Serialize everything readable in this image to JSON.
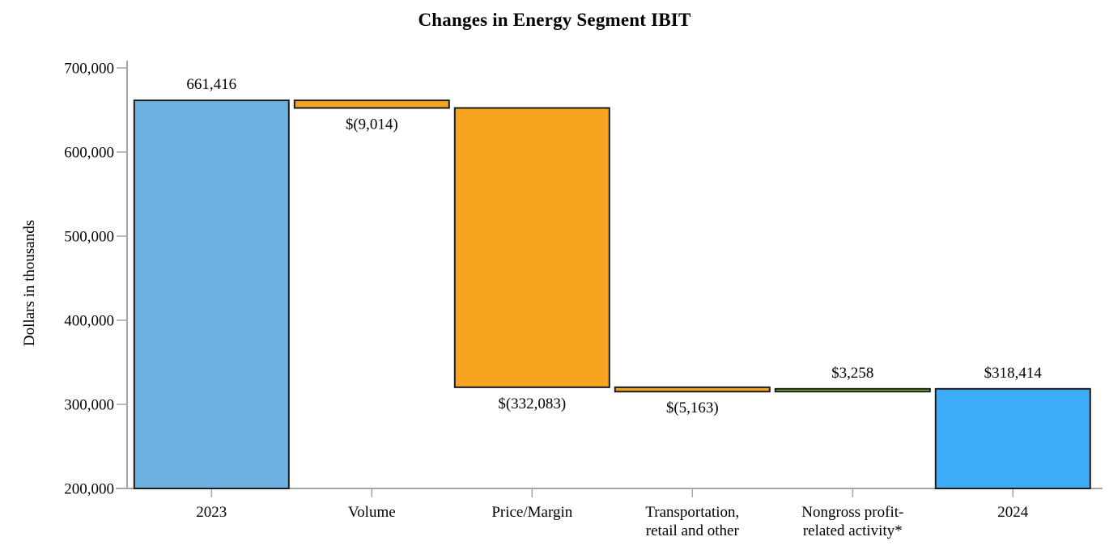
{
  "chart_data": {
    "type": "bar",
    "subtype": "waterfall",
    "title": "Changes in Energy Segment IBIT",
    "ylabel": "Dollars in thousands",
    "ylim": [
      200000,
      700000
    ],
    "ytick_step": 100000,
    "yticks": [
      700000,
      600000,
      500000,
      400000,
      300000,
      200000
    ],
    "ytick_labels": [
      "700,000",
      "600,000",
      "500,000",
      "400,000",
      "300,000",
      "200,000"
    ],
    "grid": false,
    "legend": false,
    "bars": [
      {
        "category_lines": [
          "2023"
        ],
        "kind": "total",
        "value": 661416,
        "start": 200000,
        "end": 661416,
        "data_label": "661,416",
        "label_position": "above",
        "color": "#6CB1E1"
      },
      {
        "category_lines": [
          "Volume"
        ],
        "kind": "decrease",
        "value": -9014,
        "start": 661416,
        "end": 652402,
        "data_label": "$(9,014)",
        "label_position": "below",
        "color": "#F7A521"
      },
      {
        "category_lines": [
          "Price/Margin"
        ],
        "kind": "decrease",
        "value": -332083,
        "start": 652402,
        "end": 320319,
        "data_label": "$(332,083)",
        "label_position": "below",
        "color": "#F7A521"
      },
      {
        "category_lines": [
          "Transportation,",
          "retail and other"
        ],
        "kind": "decrease",
        "value": -5163,
        "start": 320319,
        "end": 315156,
        "data_label": "$(5,163)",
        "label_position": "below",
        "color": "#F7A521"
      },
      {
        "category_lines": [
          "Nongross profit-",
          "related activity*"
        ],
        "kind": "increase",
        "value": 3258,
        "start": 315156,
        "end": 318414,
        "data_label": "$3,258",
        "label_position": "above",
        "color": "#7CC122"
      },
      {
        "category_lines": [
          "2024"
        ],
        "kind": "total",
        "value": 318414,
        "start": 200000,
        "end": 318414,
        "data_label": "$318,414",
        "label_position": "above",
        "color": "#3FACFA"
      }
    ],
    "colors": {
      "axis": "#A6A6A6",
      "bar_border": "#1C1C1C",
      "text": "#000000",
      "background": "#FFFFFF"
    }
  }
}
